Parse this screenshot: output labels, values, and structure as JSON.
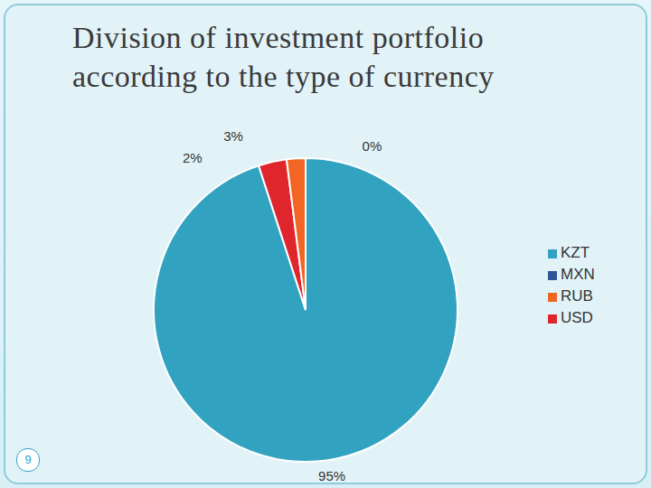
{
  "chart_data": {
    "type": "pie",
    "title": "Division of investment portfolio according to the type of currency",
    "categories": [
      "KZT",
      "USD",
      "RUB",
      "MXN"
    ],
    "values": [
      95,
      3,
      2,
      0
    ],
    "value_labels": [
      "95%",
      "3%",
      "2%",
      "0%"
    ],
    "colors": [
      "#31a3c1",
      "#e0262d",
      "#f26522",
      "#2e5597"
    ],
    "data_labels": true,
    "legend": "right"
  },
  "slide_number": 9
}
